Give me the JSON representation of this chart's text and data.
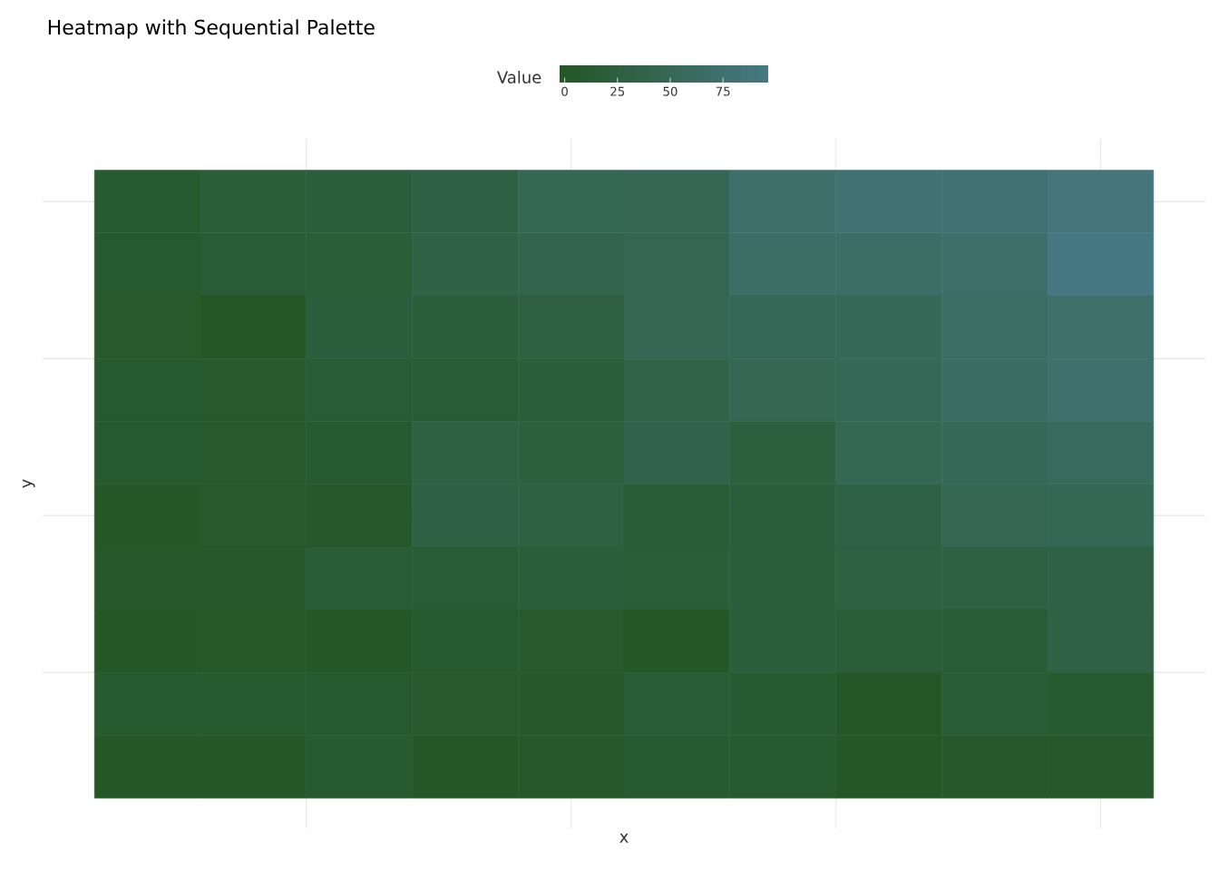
{
  "chart_data": {
    "type": "heatmap",
    "title": "Heatmap with Sequential Palette",
    "xlabel": "x",
    "ylabel": "y",
    "clabel": "Value",
    "categories": [
      null,
      null,
      null,
      null,
      null,
      null,
      null,
      null,
      null,
      null
    ],
    "y_categories": [
      null,
      null,
      null,
      null,
      null,
      null,
      null,
      null,
      null,
      null
    ],
    "cells": [
      [
        8,
        17,
        22,
        28,
        48,
        47,
        70,
        80,
        80,
        88
      ],
      [
        6,
        14,
        18,
        32,
        38,
        44,
        66,
        66,
        70,
        96
      ],
      [
        5,
        -2,
        22,
        20,
        26,
        46,
        50,
        52,
        66,
        72
      ],
      [
        6,
        5,
        13,
        12,
        20,
        34,
        46,
        50,
        64,
        74
      ],
      [
        6,
        5,
        10,
        26,
        24,
        36,
        24,
        48,
        50,
        56
      ],
      [
        0,
        5,
        3,
        28,
        26,
        14,
        22,
        30,
        44,
        48
      ],
      [
        4,
        3,
        14,
        12,
        20,
        18,
        22,
        26,
        26,
        30
      ],
      [
        1,
        2,
        1,
        6,
        5,
        0,
        22,
        18,
        12,
        30
      ],
      [
        8,
        6,
        6,
        5,
        4,
        12,
        10,
        -1,
        14,
        8
      ],
      [
        0,
        0,
        10,
        -1,
        3,
        10,
        6,
        -1,
        3,
        4
      ]
    ],
    "colors": [
      "#245626",
      "#467883"
    ],
    "clim": [
      -2.4,
      96.4
    ],
    "cticks": [
      0,
      25,
      50,
      75
    ],
    "grid": true,
    "tick_labels": false
  }
}
